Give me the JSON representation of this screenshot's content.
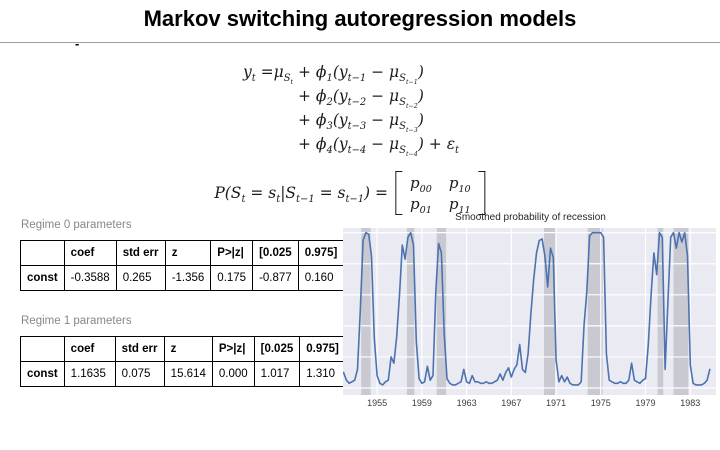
{
  "slide": {
    "title": "Markov switching autoregression models",
    "stray_mark": "-"
  },
  "equations": {
    "ar_rows": [
      {
        "prefix": "y_{t} =μ_{S_{t}} ",
        "terms": "+ ϕ_{1}(y_{t−1} − μ_{S_{t−1}})"
      },
      {
        "prefix": "",
        "terms": "+ ϕ_{2}(y_{t−2} − μ_{S_{t−2}})"
      },
      {
        "prefix": "",
        "terms": "+ ϕ_{3}(y_{t−3} − μ_{S_{t−3}})"
      },
      {
        "prefix": "",
        "terms": "+ ϕ_{4}(y_{t−4} − μ_{S_{t−4}}) + ε_{t}"
      }
    ],
    "transition_lhs": "P(S_{t} = s_{t}|S_{t−1} = s_{t−1}) =",
    "matrix": [
      [
        "p_{00}",
        "p_{10}"
      ],
      [
        "p_{01}",
        "p_{11}"
      ]
    ]
  },
  "tables": {
    "regime0": {
      "label": "Regime 0 parameters",
      "headers": [
        "",
        "coef",
        "std err",
        "z",
        "P>|z|",
        "[0.025",
        "0.975]"
      ],
      "rows": [
        [
          "const",
          "-0.3588",
          "0.265",
          "-1.356",
          "0.175",
          "-0.877",
          "0.160"
        ]
      ]
    },
    "regime1": {
      "label": "Regime 1 parameters",
      "headers": [
        "",
        "coef",
        "std err",
        "z",
        "P>|z|",
        "[0.025",
        "0.975]"
      ],
      "rows": [
        [
          "const",
          "1.1635",
          "0.075",
          "15.614",
          "0.000",
          "1.017",
          "1.310"
        ]
      ]
    }
  },
  "chart_data": {
    "type": "line",
    "title": "Smoothed probability of recession",
    "xlabel": "",
    "ylabel": "",
    "xlim": [
      1951.95,
      1985.3
    ],
    "ylim": [
      -0.045,
      1.03
    ],
    "x_ticks": [
      1955,
      1959,
      1963,
      1967,
      1971,
      1975,
      1979,
      1983
    ],
    "y_gridlines": [
      0,
      0.2,
      0.4,
      0.6,
      0.8,
      1.0
    ],
    "grid": true,
    "legend": "none",
    "plot_bg": "#eaeaf2",
    "grid_color": "#ffffff",
    "line_color": "#4c72b0",
    "band_color": "#a8a8b0",
    "band_opacity": 0.5,
    "recession_bands": [
      [
        1953.58,
        1954.42
      ],
      [
        1957.67,
        1958.33
      ],
      [
        1960.33,
        1961.17
      ],
      [
        1969.92,
        1970.92
      ],
      [
        1973.83,
        1975.17
      ],
      [
        1980.08,
        1980.58
      ],
      [
        1981.5,
        1982.83
      ]
    ],
    "series": [
      {
        "name": "Smoothed probability of recession",
        "points": [
          [
            1952.0,
            0.1
          ],
          [
            1952.25,
            0.05
          ],
          [
            1952.5,
            0.03
          ],
          [
            1952.75,
            0.04
          ],
          [
            1953.0,
            0.05
          ],
          [
            1953.25,
            0.12
          ],
          [
            1953.5,
            0.5
          ],
          [
            1953.75,
            0.95
          ],
          [
            1954.0,
            1.0
          ],
          [
            1954.25,
            0.99
          ],
          [
            1954.5,
            0.85
          ],
          [
            1954.75,
            0.32
          ],
          [
            1955.0,
            0.08
          ],
          [
            1955.25,
            0.03
          ],
          [
            1955.5,
            0.02
          ],
          [
            1955.75,
            0.04
          ],
          [
            1956.0,
            0.05
          ],
          [
            1956.25,
            0.2
          ],
          [
            1956.5,
            0.16
          ],
          [
            1956.75,
            0.33
          ],
          [
            1957.0,
            0.6
          ],
          [
            1957.25,
            0.92
          ],
          [
            1957.5,
            0.83
          ],
          [
            1957.75,
            0.97
          ],
          [
            1958.0,
            1.0
          ],
          [
            1958.25,
            0.92
          ],
          [
            1958.5,
            0.3
          ],
          [
            1958.75,
            0.06
          ],
          [
            1959.0,
            0.03
          ],
          [
            1959.25,
            0.04
          ],
          [
            1959.5,
            0.14
          ],
          [
            1959.75,
            0.05
          ],
          [
            1960.0,
            0.08
          ],
          [
            1960.25,
            0.62
          ],
          [
            1960.5,
            0.93
          ],
          [
            1960.75,
            0.87
          ],
          [
            1961.0,
            0.35
          ],
          [
            1961.25,
            0.06
          ],
          [
            1961.5,
            0.03
          ],
          [
            1961.75,
            0.02
          ],
          [
            1962.0,
            0.02
          ],
          [
            1962.25,
            0.03
          ],
          [
            1962.5,
            0.04
          ],
          [
            1962.75,
            0.12
          ],
          [
            1963.0,
            0.04
          ],
          [
            1963.25,
            0.03
          ],
          [
            1963.5,
            0.08
          ],
          [
            1963.75,
            0.04
          ],
          [
            1964.0,
            0.04
          ],
          [
            1964.25,
            0.03
          ],
          [
            1964.5,
            0.03
          ],
          [
            1964.75,
            0.04
          ],
          [
            1965.0,
            0.03
          ],
          [
            1965.25,
            0.03
          ],
          [
            1965.5,
            0.04
          ],
          [
            1965.75,
            0.05
          ],
          [
            1966.0,
            0.09
          ],
          [
            1966.25,
            0.05
          ],
          [
            1966.5,
            0.1
          ],
          [
            1966.75,
            0.13
          ],
          [
            1967.0,
            0.07
          ],
          [
            1967.25,
            0.12
          ],
          [
            1967.5,
            0.15
          ],
          [
            1967.75,
            0.28
          ],
          [
            1968.0,
            0.12
          ],
          [
            1968.25,
            0.1
          ],
          [
            1968.5,
            0.22
          ],
          [
            1968.75,
            0.48
          ],
          [
            1969.0,
            0.7
          ],
          [
            1969.25,
            0.87
          ],
          [
            1969.5,
            0.95
          ],
          [
            1969.75,
            0.96
          ],
          [
            1970.0,
            0.85
          ],
          [
            1970.25,
            0.65
          ],
          [
            1970.5,
            0.9
          ],
          [
            1970.75,
            0.84
          ],
          [
            1971.0,
            0.18
          ],
          [
            1971.25,
            0.04
          ],
          [
            1971.5,
            0.08
          ],
          [
            1971.75,
            0.04
          ],
          [
            1972.0,
            0.07
          ],
          [
            1972.25,
            0.03
          ],
          [
            1972.5,
            0.02
          ],
          [
            1972.75,
            0.02
          ],
          [
            1973.0,
            0.02
          ],
          [
            1973.25,
            0.04
          ],
          [
            1973.5,
            0.4
          ],
          [
            1973.75,
            0.62
          ],
          [
            1974.0,
            0.98
          ],
          [
            1974.25,
            1.0
          ],
          [
            1974.5,
            1.0
          ],
          [
            1974.75,
            1.0
          ],
          [
            1975.0,
            1.0
          ],
          [
            1975.25,
            0.97
          ],
          [
            1975.5,
            0.22
          ],
          [
            1975.75,
            0.05
          ],
          [
            1976.0,
            0.04
          ],
          [
            1976.25,
            0.03
          ],
          [
            1976.5,
            0.03
          ],
          [
            1976.75,
            0.04
          ],
          [
            1977.0,
            0.03
          ],
          [
            1977.25,
            0.03
          ],
          [
            1977.5,
            0.05
          ],
          [
            1977.75,
            0.16
          ],
          [
            1978.0,
            0.05
          ],
          [
            1978.25,
            0.04
          ],
          [
            1978.5,
            0.03
          ],
          [
            1978.75,
            0.05
          ],
          [
            1979.0,
            0.06
          ],
          [
            1979.25,
            0.28
          ],
          [
            1979.5,
            0.6
          ],
          [
            1979.75,
            0.87
          ],
          [
            1980.0,
            0.73
          ],
          [
            1980.25,
            1.0
          ],
          [
            1980.5,
            0.97
          ],
          [
            1980.75,
            0.12
          ],
          [
            1981.0,
            0.55
          ],
          [
            1981.25,
            0.97
          ],
          [
            1981.5,
            1.0
          ],
          [
            1981.75,
            0.9
          ],
          [
            1982.0,
            1.0
          ],
          [
            1982.25,
            0.94
          ],
          [
            1982.5,
            1.0
          ],
          [
            1982.75,
            0.85
          ],
          [
            1983.0,
            0.15
          ],
          [
            1983.25,
            0.03
          ],
          [
            1983.5,
            0.02
          ],
          [
            1983.75,
            0.02
          ],
          [
            1984.0,
            0.02
          ],
          [
            1984.25,
            0.03
          ],
          [
            1984.5,
            0.05
          ],
          [
            1984.75,
            0.12
          ]
        ]
      }
    ]
  }
}
